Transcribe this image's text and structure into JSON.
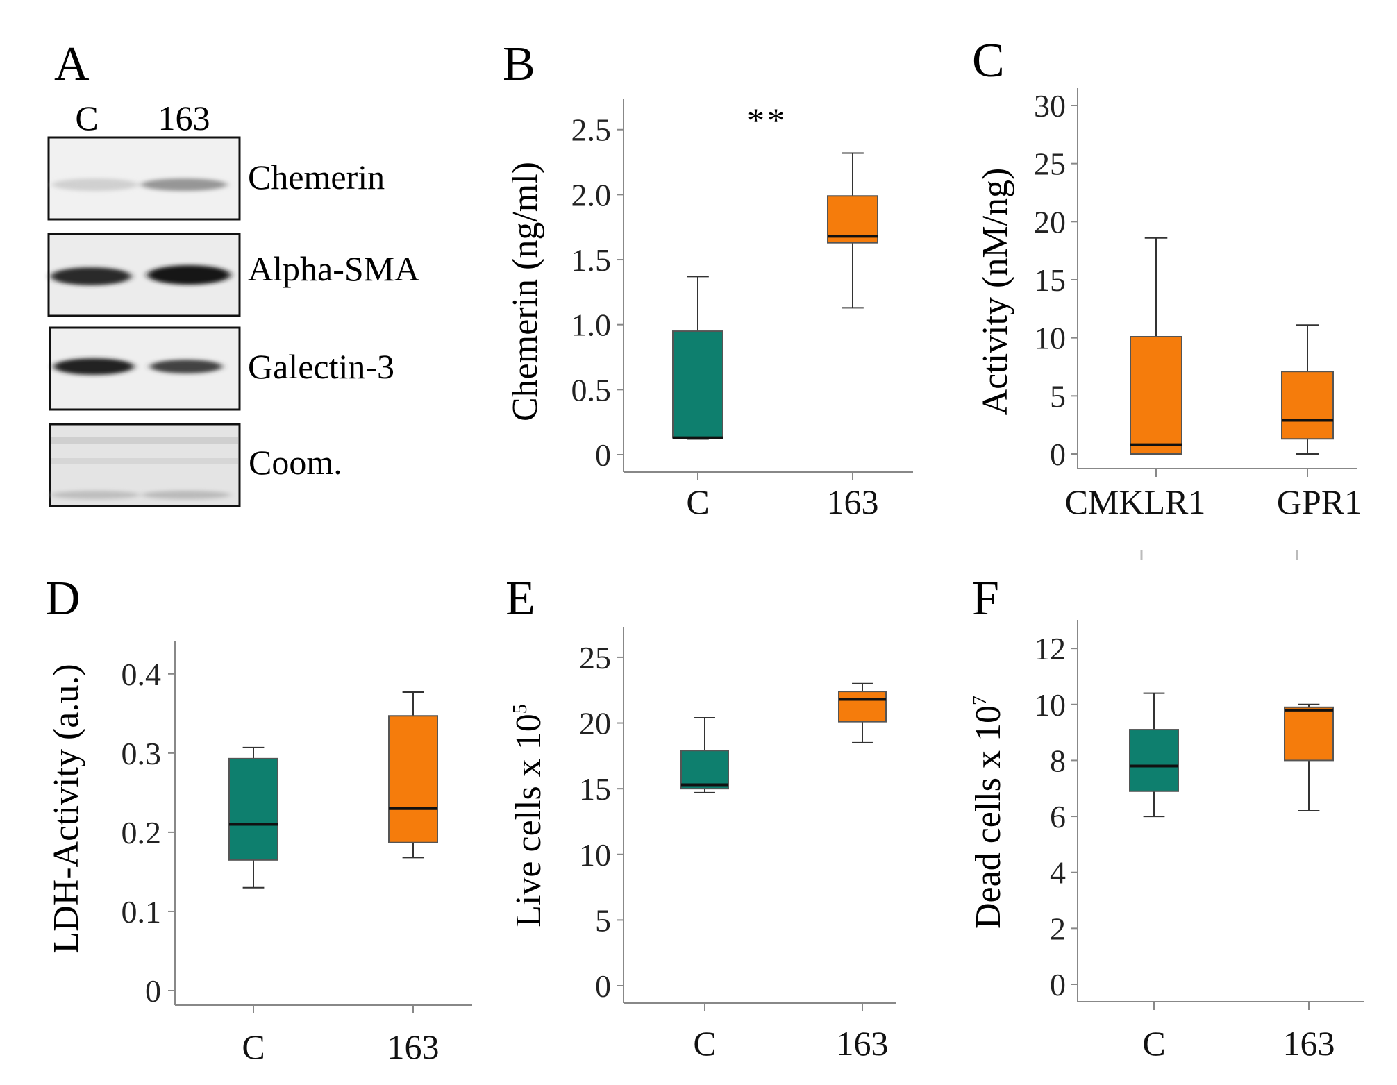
{
  "colors": {
    "control": "#0e7f6e",
    "treated": "#f57c0c",
    "axis": "#888888",
    "ink": "#111111"
  },
  "panels": {
    "A": {
      "letter": "A",
      "lanes": [
        "C",
        "163"
      ],
      "blots": [
        {
          "label": "Chemerin",
          "intensities": [
            0.12,
            0.38
          ]
        },
        {
          "label": "Alpha-SMA",
          "intensities": [
            0.85,
            0.95
          ]
        },
        {
          "label": "Galectin-3",
          "intensities": [
            0.9,
            0.75
          ]
        },
        {
          "label": "Coom.",
          "intensities": [
            0.2,
            0.22
          ]
        }
      ]
    }
  },
  "chart_data": [
    {
      "panel": "B",
      "type": "box",
      "ylabel": "Chemerin (ng/ml)",
      "ylim": [
        0,
        2.6
      ],
      "yticks": [
        0,
        0.5,
        1.0,
        1.5,
        2.0,
        2.5
      ],
      "ytick_labels": [
        "0",
        "0.5",
        "1.0",
        "1.5",
        "2.0",
        "2.5"
      ],
      "significance": "**",
      "boxes": [
        {
          "category": "C",
          "group": "control",
          "min": 0.12,
          "q1": 0.13,
          "median": 0.13,
          "q3": 0.95,
          "max": 1.37
        },
        {
          "category": "163",
          "group": "treated",
          "min": 1.13,
          "q1": 1.63,
          "median": 1.68,
          "q3": 1.99,
          "max": 2.32
        }
      ]
    },
    {
      "panel": "C",
      "type": "box",
      "ylabel": "Activity (nM/ng)",
      "ylim": [
        0,
        30
      ],
      "yticks": [
        0,
        5,
        10,
        15,
        20,
        25,
        30
      ],
      "ytick_labels": [
        "0",
        "5",
        "10",
        "15",
        "20",
        "25",
        "30"
      ],
      "boxes": [
        {
          "category": "CMKLR1",
          "group": "treated",
          "min": 0,
          "q1": 0,
          "median": 0.8,
          "q3": 10.1,
          "max": 18.6
        },
        {
          "category": "GPR1",
          "group": "treated",
          "min": 0,
          "q1": 1.3,
          "median": 2.9,
          "q3": 7.1,
          "max": 11.1
        }
      ]
    },
    {
      "panel": "D",
      "type": "box",
      "ylabel": "LDH-Activity (a.u.)",
      "ylim": [
        0,
        0.42
      ],
      "yticks": [
        0,
        0.1,
        0.2,
        0.3,
        0.4
      ],
      "ytick_labels": [
        "0",
        "0.1",
        "0.2",
        "0.3",
        "0.4"
      ],
      "boxes": [
        {
          "category": "C",
          "group": "control",
          "min": 0.13,
          "q1": 0.165,
          "median": 0.21,
          "q3": 0.293,
          "max": 0.307
        },
        {
          "category": "163",
          "group": "treated",
          "min": 0.168,
          "q1": 0.187,
          "median": 0.23,
          "q3": 0.347,
          "max": 0.377
        }
      ]
    },
    {
      "panel": "E",
      "type": "box",
      "ylabel": "Live cells x 10",
      "ylabel_exponent": "5",
      "ylim": [
        0,
        26
      ],
      "yticks": [
        0,
        5,
        10,
        15,
        20,
        25
      ],
      "ytick_labels": [
        "0",
        "5",
        "10",
        "15",
        "20",
        "25"
      ],
      "boxes": [
        {
          "category": "C",
          "group": "control",
          "min": 14.7,
          "q1": 15.0,
          "median": 15.3,
          "q3": 17.9,
          "max": 20.4
        },
        {
          "category": "163",
          "group": "treated",
          "min": 18.5,
          "q1": 20.1,
          "median": 21.8,
          "q3": 22.4,
          "max": 23.0
        }
      ]
    },
    {
      "panel": "F",
      "type": "box",
      "ylabel": "Dead cells x 10",
      "ylabel_exponent": "7",
      "ylim": [
        0,
        12.4
      ],
      "yticks": [
        0,
        2,
        4,
        6,
        8,
        10,
        12
      ],
      "ytick_labels": [
        "0",
        "2",
        "4",
        "6",
        "8",
        "10",
        "12"
      ],
      "boxes": [
        {
          "category": "C",
          "group": "control",
          "min": 6.0,
          "q1": 6.9,
          "median": 7.8,
          "q3": 9.1,
          "max": 10.4
        },
        {
          "category": "163",
          "group": "treated",
          "min": 6.2,
          "q1": 8.0,
          "median": 9.8,
          "q3": 9.9,
          "max": 10.0
        }
      ]
    }
  ]
}
